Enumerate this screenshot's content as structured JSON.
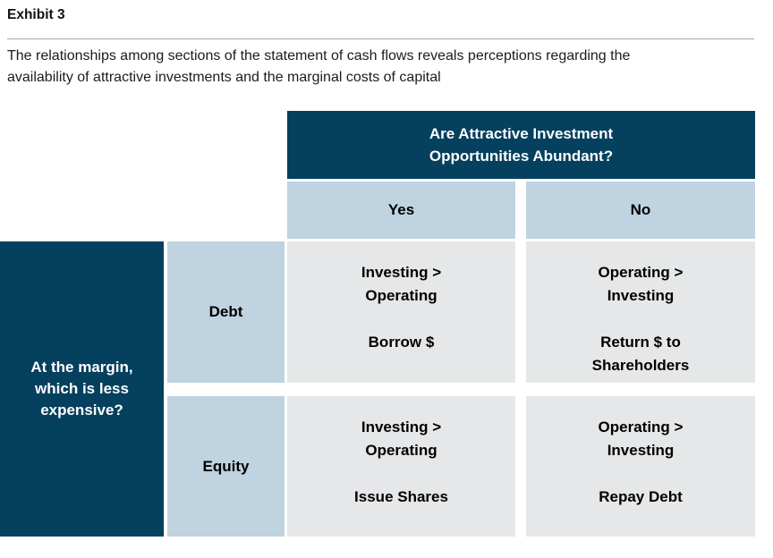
{
  "exhibit": {
    "title": "Exhibit 3",
    "subtitle_lines": [
      "The relationships among sections of the statement of cash flows reveals perceptions regarding the",
      "availability of attractive investments and the marginal costs of capital"
    ]
  },
  "matrix": {
    "column_question_lines": [
      "Are Attractive Investment",
      "Opportunities Abundant?"
    ],
    "column_headers": [
      "Yes",
      "No"
    ],
    "row_question_lines": [
      "At the margin,",
      "which is less",
      "expensive?"
    ],
    "row_headers": [
      "Debt",
      "Equity"
    ],
    "cells": {
      "debt_yes": {
        "lines": [
          "Investing >",
          "Operating",
          "",
          "Borrow $"
        ]
      },
      "debt_no": {
        "lines": [
          "Operating >",
          "Investing",
          "",
          "Return $ to",
          "Shareholders"
        ]
      },
      "equity_yes": {
        "lines": [
          "Investing >",
          "Operating",
          "",
          "Issue Shares"
        ]
      },
      "equity_no": {
        "lines": [
          "Operating >",
          "Investing",
          "",
          "Repay Debt"
        ]
      }
    }
  },
  "colors": {
    "dark_blue": "#05405E",
    "light_blue": "#BFD3E0",
    "cell_gray": "#E6E7E8",
    "divider_gray": "#A6A6A6",
    "header_text": "#FFFFFF",
    "body_text": "#1C1C1C"
  }
}
